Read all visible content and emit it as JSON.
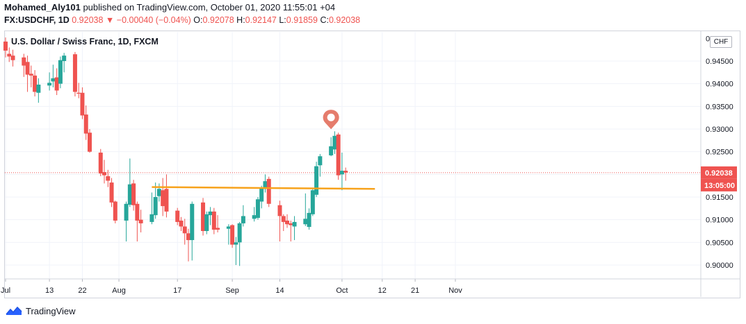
{
  "header": {
    "author": "Mohamed_Aly101",
    "published": " published on TradingView.com, October 01, 2020 11:55:01 +04",
    "symbol": "FX:USDCHF, 1D",
    "last": "0.92038",
    "change_arrow": "▼",
    "change": "−0.00040 (−0.04%)",
    "o_label": "O:",
    "o_value": "0.92078",
    "h_label": "H:",
    "h_value": "0.92147",
    "l_label": "L:",
    "l_value": "0.91859",
    "c_label": "C:",
    "c_value": "0.92038"
  },
  "chart_title": "U.S. Dollar / Swiss Franc, 1D, FXCM",
  "currency_button": "CHF",
  "footer": {
    "brand": "TradingView"
  },
  "colors": {
    "up": "#26a69a",
    "down": "#ef5350",
    "support_line": "#f7a21b",
    "pin": "#e57c6c",
    "grid": "#f0f3fa",
    "axis_text": "#131722",
    "last_price_bg": "#ef5350"
  },
  "chart_data": {
    "type": "candlestick",
    "title": "U.S. Dollar / Swiss Franc, 1D, FXCM",
    "y_axis": {
      "min": 0.896,
      "max": 0.9525,
      "ticks": [
        "0.90000",
        "0.90500",
        "0.91000",
        "0.91500",
        "0.92000",
        "0.92500",
        "0.93000",
        "0.93500",
        "0.94000",
        "0.94500"
      ],
      "top_tick_partial": "0"
    },
    "x_axis": {
      "ticks": [
        "Jul",
        "13",
        "22",
        "Aug",
        "17",
        "Sep",
        "14",
        "Oct",
        "12",
        "21",
        "Nov"
      ]
    },
    "last_price_label": "0.92038",
    "countdown_label": "13:05:00",
    "last_price": 0.92038,
    "support_line": {
      "from": "2020-08-10",
      "to": "2020-10-10",
      "start_value": 0.9172,
      "end_value": 0.9168
    },
    "marker": {
      "date": "2020-09-28",
      "type": "pin"
    },
    "candles": [
      {
        "d": "2020-07-01",
        "o": 0.9493,
        "h": 0.9502,
        "l": 0.9458,
        "c": 0.9473
      },
      {
        "d": "2020-07-02",
        "o": 0.9466,
        "h": 0.948,
        "l": 0.9448,
        "c": 0.946
      },
      {
        "d": "2020-07-03",
        "o": 0.9462,
        "h": 0.9475,
        "l": 0.9438,
        "c": 0.9452
      },
      {
        "d": "2020-07-06",
        "o": 0.9458,
        "h": 0.9466,
        "l": 0.9415,
        "c": 0.944
      },
      {
        "d": "2020-07-07",
        "o": 0.9448,
        "h": 0.9462,
        "l": 0.9382,
        "c": 0.942
      },
      {
        "d": "2020-07-08",
        "o": 0.9422,
        "h": 0.944,
        "l": 0.9392,
        "c": 0.9418
      },
      {
        "d": "2020-07-09",
        "o": 0.9418,
        "h": 0.943,
        "l": 0.9372,
        "c": 0.9382
      },
      {
        "d": "2020-07-10",
        "o": 0.938,
        "h": 0.9412,
        "l": 0.9358,
        "c": 0.9398
      },
      {
        "d": "2020-07-13",
        "o": 0.9396,
        "h": 0.9425,
        "l": 0.9385,
        "c": 0.9402
      },
      {
        "d": "2020-07-14",
        "o": 0.9405,
        "h": 0.9442,
        "l": 0.9392,
        "c": 0.9412
      },
      {
        "d": "2020-07-15",
        "o": 0.9414,
        "h": 0.9434,
        "l": 0.9375,
        "c": 0.9385
      },
      {
        "d": "2020-07-16",
        "o": 0.94,
        "h": 0.946,
        "l": 0.939,
        "c": 0.9452
      },
      {
        "d": "2020-07-17",
        "o": 0.945,
        "h": 0.9468,
        "l": 0.9425,
        "c": 0.9462
      },
      {
        "d": "2020-07-20",
        "o": 0.9465,
        "h": 0.947,
        "l": 0.9372,
        "c": 0.9382
      },
      {
        "d": "2020-07-21",
        "o": 0.938,
        "h": 0.9402,
        "l": 0.9368,
        "c": 0.9378
      },
      {
        "d": "2020-07-22",
        "o": 0.938,
        "h": 0.9392,
        "l": 0.9322,
        "c": 0.933
      },
      {
        "d": "2020-07-23",
        "o": 0.9332,
        "h": 0.9352,
        "l": 0.9276,
        "c": 0.929
      },
      {
        "d": "2020-07-24",
        "o": 0.9292,
        "h": 0.93,
        "l": 0.9248,
        "c": 0.925
      },
      {
        "d": "2020-07-27",
        "o": 0.9248,
        "h": 0.9256,
        "l": 0.9196,
        "c": 0.9202
      },
      {
        "d": "2020-07-28",
        "o": 0.9205,
        "h": 0.9232,
        "l": 0.918,
        "c": 0.9198
      },
      {
        "d": "2020-07-29",
        "o": 0.9196,
        "h": 0.921,
        "l": 0.9172,
        "c": 0.9186
      },
      {
        "d": "2020-07-30",
        "o": 0.9182,
        "h": 0.9192,
        "l": 0.9128,
        "c": 0.9138
      },
      {
        "d": "2020-07-31",
        "o": 0.914,
        "h": 0.9142,
        "l": 0.9092,
        "c": 0.9098
      },
      {
        "d": "2020-08-03",
        "o": 0.9098,
        "h": 0.914,
        "l": 0.9052,
        "c": 0.9135
      },
      {
        "d": "2020-08-04",
        "o": 0.9133,
        "h": 0.9235,
        "l": 0.9128,
        "c": 0.9178
      },
      {
        "d": "2020-08-05",
        "o": 0.918,
        "h": 0.9188,
        "l": 0.912,
        "c": 0.9132
      },
      {
        "d": "2020-08-06",
        "o": 0.9135,
        "h": 0.914,
        "l": 0.9052,
        "c": 0.9098
      },
      {
        "d": "2020-08-07",
        "o": 0.91,
        "h": 0.9122,
        "l": 0.9072,
        "c": 0.9092
      },
      {
        "d": "2020-08-10",
        "o": 0.9095,
        "h": 0.916,
        "l": 0.909,
        "c": 0.9112
      },
      {
        "d": "2020-08-11",
        "o": 0.911,
        "h": 0.9182,
        "l": 0.9102,
        "c": 0.915
      },
      {
        "d": "2020-08-12",
        "o": 0.9152,
        "h": 0.918,
        "l": 0.914,
        "c": 0.9168
      },
      {
        "d": "2020-08-13",
        "o": 0.9165,
        "h": 0.9192,
        "l": 0.9108,
        "c": 0.913
      },
      {
        "d": "2020-08-14",
        "o": 0.9168,
        "h": 0.92,
        "l": 0.9105,
        "c": 0.9118
      },
      {
        "d": "2020-08-17",
        "o": 0.912,
        "h": 0.9126,
        "l": 0.9088,
        "c": 0.9095
      },
      {
        "d": "2020-08-18",
        "o": 0.9098,
        "h": 0.9106,
        "l": 0.9075,
        "c": 0.9085
      },
      {
        "d": "2020-08-19",
        "o": 0.9085,
        "h": 0.9102,
        "l": 0.9045,
        "c": 0.907
      },
      {
        "d": "2020-08-20",
        "o": 0.907,
        "h": 0.908,
        "l": 0.9008,
        "c": 0.9055
      },
      {
        "d": "2020-08-21",
        "o": 0.9055,
        "h": 0.914,
        "l": 0.901,
        "c": 0.9135
      },
      {
        "d": "2020-08-24",
        "o": 0.9138,
        "h": 0.9148,
        "l": 0.9065,
        "c": 0.9075
      },
      {
        "d": "2020-08-25",
        "o": 0.9075,
        "h": 0.9118,
        "l": 0.9068,
        "c": 0.9112
      },
      {
        "d": "2020-08-26",
        "o": 0.911,
        "h": 0.9128,
        "l": 0.9088,
        "c": 0.9118
      },
      {
        "d": "2020-08-27",
        "o": 0.9118,
        "h": 0.9126,
        "l": 0.9068,
        "c": 0.9078
      },
      {
        "d": "2020-08-28",
        "o": 0.9082,
        "h": 0.911,
        "l": 0.9072,
        "c": 0.9078
      },
      {
        "d": "2020-08-31",
        "o": 0.908,
        "h": 0.909,
        "l": 0.9045,
        "c": 0.9085
      },
      {
        "d": "2020-09-01",
        "o": 0.9088,
        "h": 0.909,
        "l": 0.9038,
        "c": 0.9045
      },
      {
        "d": "2020-09-02",
        "o": 0.9045,
        "h": 0.9062,
        "l": 0.9,
        "c": 0.905
      },
      {
        "d": "2020-09-03",
        "o": 0.905,
        "h": 0.9095,
        "l": 0.8998,
        "c": 0.9092
      },
      {
        "d": "2020-09-04",
        "o": 0.9092,
        "h": 0.9132,
        "l": 0.9085,
        "c": 0.9108
      },
      {
        "d": "2020-09-07",
        "o": 0.9102,
        "h": 0.9128,
        "l": 0.9096,
        "c": 0.911
      },
      {
        "d": "2020-09-08",
        "o": 0.9104,
        "h": 0.915,
        "l": 0.91,
        "c": 0.9145
      },
      {
        "d": "2020-09-09",
        "o": 0.914,
        "h": 0.9175,
        "l": 0.9125,
        "c": 0.917
      },
      {
        "d": "2020-09-10",
        "o": 0.9168,
        "h": 0.92,
        "l": 0.916,
        "c": 0.9185
      },
      {
        "d": "2020-09-11",
        "o": 0.919,
        "h": 0.9195,
        "l": 0.9128,
        "c": 0.9135
      },
      {
        "d": "2020-09-14",
        "o": 0.9132,
        "h": 0.9142,
        "l": 0.9052,
        "c": 0.9108
      },
      {
        "d": "2020-09-15",
        "o": 0.9108,
        "h": 0.9112,
        "l": 0.9075,
        "c": 0.9095
      },
      {
        "d": "2020-09-16",
        "o": 0.9098,
        "h": 0.9112,
        "l": 0.9082,
        "c": 0.909
      },
      {
        "d": "2020-09-17",
        "o": 0.9092,
        "h": 0.9098,
        "l": 0.9052,
        "c": 0.9088
      },
      {
        "d": "2020-09-18",
        "o": 0.9085,
        "h": 0.9108,
        "l": 0.9055,
        "c": 0.9095
      },
      {
        "d": "2020-09-21",
        "o": 0.909,
        "h": 0.9158,
        "l": 0.9086,
        "c": 0.9102
      },
      {
        "d": "2020-09-22",
        "o": 0.9084,
        "h": 0.9125,
        "l": 0.9078,
        "c": 0.9115
      },
      {
        "d": "2020-09-23",
        "o": 0.9112,
        "h": 0.917,
        "l": 0.9108,
        "c": 0.9165
      },
      {
        "d": "2020-09-24",
        "o": 0.9155,
        "h": 0.9228,
        "l": 0.915,
        "c": 0.9218
      },
      {
        "d": "2020-09-25",
        "o": 0.922,
        "h": 0.9245,
        "l": 0.9195,
        "c": 0.924
      },
      {
        "d": "2020-09-28",
        "o": 0.9242,
        "h": 0.9282,
        "l": 0.924,
        "c": 0.9262
      },
      {
        "d": "2020-09-29",
        "o": 0.9255,
        "h": 0.9295,
        "l": 0.9245,
        "c": 0.9285
      },
      {
        "d": "2020-09-30",
        "o": 0.9288,
        "h": 0.9292,
        "l": 0.9188,
        "c": 0.9198
      },
      {
        "d": "2020-10-01",
        "o": 0.92,
        "h": 0.9248,
        "l": 0.9165,
        "c": 0.9208
      },
      {
        "d": "2020-10-02",
        "o": 0.9208,
        "h": 0.9215,
        "l": 0.9186,
        "c": 0.9204
      }
    ]
  }
}
